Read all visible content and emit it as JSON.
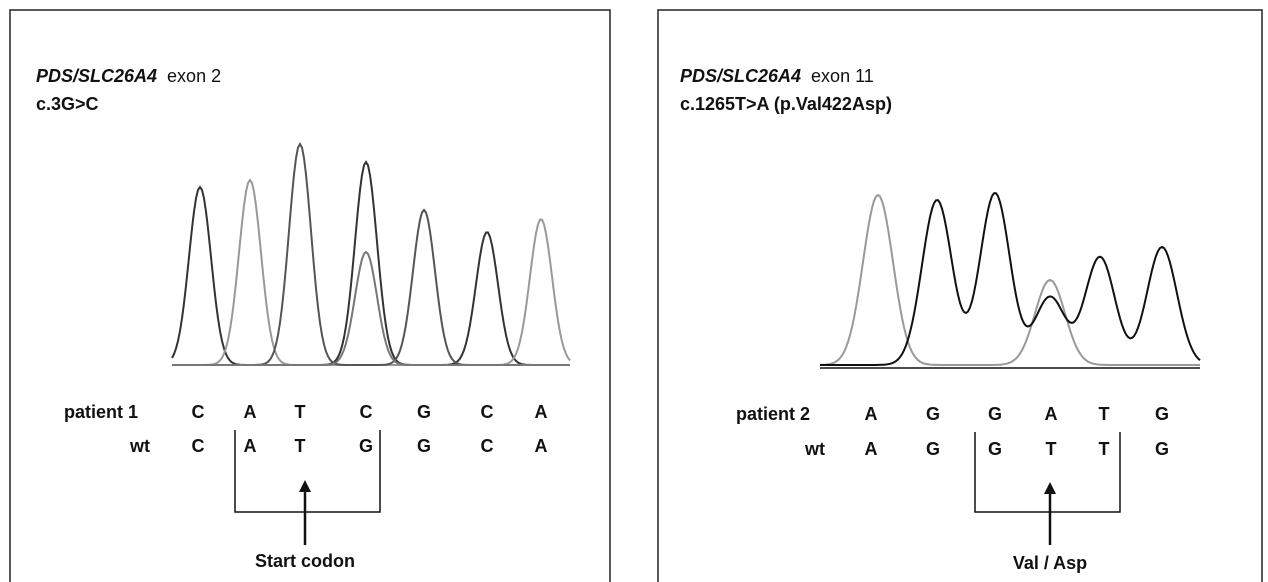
{
  "panels": [
    {
      "gene": "PDS/SLC26A4",
      "exon": "exon 2",
      "mutation": "c.3G>C",
      "patient": {
        "label": "patient 1",
        "bases": [
          "C",
          "A",
          "T",
          "C",
          "G",
          "C",
          "A"
        ]
      },
      "wt": {
        "label": "wt",
        "bases": [
          "C",
          "A",
          "T",
          "G",
          "G",
          "C",
          "A"
        ]
      },
      "annotation": "Start codon"
    },
    {
      "gene": "PDS/SLC26A4",
      "exon": "exon 11",
      "mutation": "c.1265T>A (p.Val422Asp)",
      "patient": {
        "label": "patient 2",
        "bases": [
          "A",
          "G",
          "G",
          "A",
          "T",
          "G"
        ]
      },
      "wt": {
        "label": "wt",
        "bases": [
          "A",
          "G",
          "G",
          "T",
          "T",
          "G"
        ]
      },
      "annotation": "Val / Asp"
    }
  ]
}
